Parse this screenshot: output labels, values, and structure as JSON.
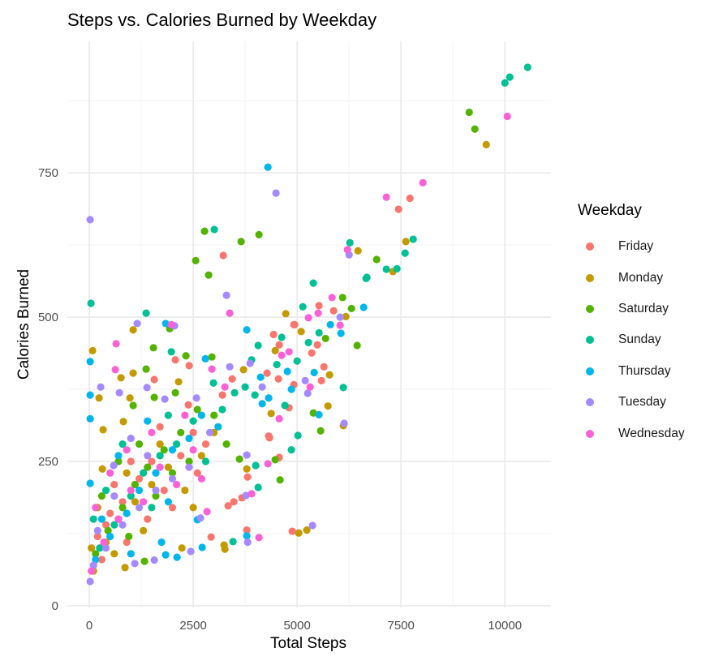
{
  "chart_data": {
    "type": "scatter",
    "title": "Steps vs. Calories Burned by Weekday",
    "xlabel": "Total Steps",
    "ylabel": "Calories Burned",
    "xlim": [
      -529,
      11109
    ],
    "ylim": [
      -3,
      978
    ],
    "x_ticks": [
      0,
      2500,
      5000,
      7500,
      10000
    ],
    "x_tick_labels": [
      "0",
      "2500",
      "5000",
      "7500",
      "10000"
    ],
    "x_minor": [
      1250,
      3750,
      6250,
      8750
    ],
    "y_ticks": [
      0,
      250,
      500,
      750
    ],
    "y_tick_labels": [
      "0",
      "250",
      "500",
      "750"
    ],
    "y_minor": [
      125,
      375,
      625,
      875
    ],
    "grid": true,
    "legend": {
      "title": "Weekday",
      "placement": "right"
    },
    "series": [
      {
        "name": "Friday",
        "color": "#F8766D",
        "points": [
          [
            3223,
            607
          ],
          [
            7715,
            706
          ],
          [
            7441,
            687
          ],
          [
            5527,
            520
          ],
          [
            5879,
            511
          ],
          [
            4941,
            487
          ],
          [
            4922,
            487
          ],
          [
            5488,
            452
          ],
          [
            5352,
            438
          ],
          [
            5645,
            414
          ],
          [
            5586,
            390
          ],
          [
            4434,
            470
          ],
          [
            4570,
            452
          ],
          [
            2070,
            426
          ],
          [
            1563,
            392
          ],
          [
            2383,
            348
          ],
          [
            2402,
            416
          ],
          [
            3438,
            393
          ],
          [
            4277,
            403
          ],
          [
            4551,
            393
          ],
          [
            4922,
            383
          ],
          [
            3203,
            365
          ],
          [
            4805,
            343
          ],
          [
            4316,
            294
          ],
          [
            4336,
            291
          ],
          [
            2930,
            119
          ],
          [
            3789,
            131
          ],
          [
            4883,
            129
          ],
          [
            3672,
            187
          ],
          [
            3477,
            180
          ],
          [
            3340,
            173
          ],
          [
            3809,
            223
          ],
          [
            4570,
            257
          ],
          [
            200,
            120
          ],
          [
            500,
            160
          ],
          [
            800,
            180
          ],
          [
            1200,
            220
          ],
          [
            1500,
            250
          ],
          [
            1800,
            200
          ],
          [
            2200,
            260
          ],
          [
            2500,
            300
          ],
          [
            900,
            110
          ],
          [
            1400,
            150
          ],
          [
            2800,
            280
          ],
          [
            300,
            80
          ],
          [
            1000,
            250
          ],
          [
            1700,
            310
          ],
          [
            600,
            210
          ],
          [
            2000,
            170
          ],
          [
            2600,
            230
          ],
          [
            400,
            140
          ]
        ]
      },
      {
        "name": "Monday",
        "color": "#C49A00",
        "points": [
          [
            9551,
            799
          ],
          [
            7617,
            631
          ],
          [
            6465,
            615
          ],
          [
            7305,
            579
          ],
          [
            6172,
            501
          ],
          [
            5098,
            475
          ],
          [
            5781,
            400
          ],
          [
            5742,
            346
          ],
          [
            6113,
            312
          ],
          [
            4727,
            506
          ],
          [
            4473,
            442
          ],
          [
            3711,
            409
          ],
          [
            4375,
            333
          ],
          [
            3242,
            105
          ],
          [
            3262,
            98
          ],
          [
            5039,
            126
          ],
          [
            5234,
            131
          ],
          [
            2227,
            100
          ],
          [
            3789,
            237
          ],
          [
            1055,
            478
          ],
          [
            78,
            442
          ],
          [
            762,
            395
          ],
          [
            234,
            360
          ],
          [
            977,
            360
          ],
          [
            820,
            319
          ],
          [
            332,
            305
          ],
          [
            1055,
            403
          ],
          [
            2148,
            388
          ],
          [
            859,
            66
          ],
          [
            313,
            237
          ],
          [
            100,
            60
          ],
          [
            400,
            110
          ],
          [
            700,
            150
          ],
          [
            1100,
            180
          ],
          [
            1500,
            210
          ],
          [
            1900,
            240
          ],
          [
            2300,
            200
          ],
          [
            2700,
            260
          ],
          [
            600,
            90
          ],
          [
            1300,
            130
          ],
          [
            200,
            170
          ],
          [
            1700,
            280
          ],
          [
            2500,
            170
          ],
          [
            900,
            230
          ],
          [
            3000,
            300
          ],
          [
            50,
            100
          ]
        ]
      },
      {
        "name": "Saturday",
        "color": "#53B400",
        "points": [
          [
            9141,
            855
          ],
          [
            9277,
            826
          ],
          [
            6914,
            600
          ],
          [
            2773,
            649
          ],
          [
            3652,
            631
          ],
          [
            4082,
            643
          ],
          [
            2559,
            598
          ],
          [
            2871,
            573
          ],
          [
            1934,
            480
          ],
          [
            6094,
            534
          ],
          [
            6309,
            515
          ],
          [
            5684,
            463
          ],
          [
            6445,
            451
          ],
          [
            5391,
            334
          ],
          [
            5566,
            303
          ],
          [
            2949,
            431
          ],
          [
            4590,
            218
          ],
          [
            3613,
            254
          ],
          [
            4473,
            253
          ],
          [
            1543,
            447
          ],
          [
            2324,
            433
          ],
          [
            1367,
            410
          ],
          [
            1563,
            361
          ],
          [
            2070,
            369
          ],
          [
            1055,
            347
          ],
          [
            1328,
            77
          ],
          [
            150,
            90
          ],
          [
            450,
            130
          ],
          [
            800,
            170
          ],
          [
            1100,
            210
          ],
          [
            1400,
            240
          ],
          [
            1800,
            270
          ],
          [
            2200,
            300
          ],
          [
            2600,
            340
          ],
          [
            700,
            250
          ],
          [
            1600,
            190
          ],
          [
            2000,
            230
          ],
          [
            3000,
            330
          ],
          [
            300,
            190
          ],
          [
            1200,
            280
          ],
          [
            2400,
            250
          ],
          [
            3300,
            280
          ],
          [
            950,
            120
          ]
        ]
      },
      {
        "name": "Sunday",
        "color": "#00C094",
        "points": [
          [
            10547,
            933
          ],
          [
            10117,
            916
          ],
          [
            10000,
            906
          ],
          [
            7793,
            635
          ],
          [
            7598,
            611
          ],
          [
            6270,
            629
          ],
          [
            7148,
            583
          ],
          [
            7402,
            584
          ],
          [
            6680,
            569
          ],
          [
            5391,
            559
          ],
          [
            6660,
            567
          ],
          [
            3008,
            652
          ],
          [
            3457,
            111
          ],
          [
            39,
            524
          ],
          [
            1367,
            507
          ],
          [
            5137,
            518
          ],
          [
            5273,
            456
          ],
          [
            5527,
            473
          ],
          [
            5000,
            424
          ],
          [
            6113,
            378
          ],
          [
            5020,
            295
          ],
          [
            4063,
            451
          ],
          [
            4629,
            465
          ],
          [
            4512,
            418
          ],
          [
            3906,
            426
          ],
          [
            2988,
            386
          ],
          [
            3750,
            379
          ],
          [
            3984,
            365
          ],
          [
            3496,
            369
          ],
          [
            4707,
            347
          ],
          [
            4863,
            270
          ],
          [
            4004,
            243
          ],
          [
            4063,
            205
          ],
          [
            1973,
            440
          ],
          [
            250,
            100
          ],
          [
            600,
            140
          ],
          [
            1000,
            190
          ],
          [
            1300,
            230
          ],
          [
            1700,
            260
          ],
          [
            2100,
            280
          ],
          [
            2500,
            320
          ],
          [
            800,
            280
          ],
          [
            1500,
            170
          ],
          [
            1900,
            330
          ],
          [
            2800,
            250
          ],
          [
            400,
            200
          ],
          [
            3200,
            340
          ],
          [
            100,
            150
          ]
        ]
      },
      {
        "name": "Thursday",
        "color": "#00B6EB",
        "points": [
          [
            4297,
            760
          ],
          [
            6602,
            517
          ],
          [
            5801,
            487
          ],
          [
            6055,
            472
          ],
          [
            5410,
            404
          ],
          [
            5527,
            331
          ],
          [
            1836,
            489
          ],
          [
            3789,
            478
          ],
          [
            3789,
            121
          ],
          [
            2715,
            101
          ],
          [
            1836,
            88
          ],
          [
            2109,
            84
          ],
          [
            1738,
            110
          ],
          [
            20,
            423
          ],
          [
            2793,
            428
          ],
          [
            4121,
            396
          ],
          [
            4766,
            406
          ],
          [
            4863,
            375
          ],
          [
            4316,
            360
          ],
          [
            4160,
            350
          ],
          [
            20,
            365
          ],
          [
            20,
            324
          ],
          [
            20,
            212
          ],
          [
            2598,
            149
          ],
          [
            150,
            80
          ],
          [
            500,
            120
          ],
          [
            900,
            160
          ],
          [
            1200,
            200
          ],
          [
            1600,
            230
          ],
          [
            2000,
            270
          ],
          [
            2400,
            290
          ],
          [
            700,
            260
          ],
          [
            1400,
            320
          ],
          [
            2700,
            330
          ],
          [
            300,
            150
          ],
          [
            1900,
            180
          ],
          [
            3100,
            310
          ],
          [
            1000,
            90
          ]
        ]
      },
      {
        "name": "Tuesday",
        "color": "#A58AFF",
        "points": [
          [
            4492,
            715
          ],
          [
            20,
            669
          ],
          [
            3301,
            538
          ],
          [
            6250,
            608
          ],
          [
            6035,
            500
          ],
          [
            5195,
            390
          ],
          [
            5254,
            368
          ],
          [
            6133,
            316
          ],
          [
            1152,
            489
          ],
          [
            2051,
            485
          ],
          [
            3809,
            110
          ],
          [
            5371,
            139
          ],
          [
            2441,
            94
          ],
          [
            1563,
            79
          ],
          [
            3770,
            191
          ],
          [
            2676,
            152
          ],
          [
            3789,
            261
          ],
          [
            3379,
            414
          ],
          [
            3867,
            420
          ],
          [
            4160,
            379
          ],
          [
            273,
            379
          ],
          [
            723,
            369
          ],
          [
            1387,
            378
          ],
          [
            1816,
            358
          ],
          [
            2578,
            360
          ],
          [
            20,
            42
          ],
          [
            1094,
            73
          ],
          [
            586,
            243
          ],
          [
            100,
            70
          ],
          [
            400,
            100
          ],
          [
            800,
            140
          ],
          [
            1200,
            170
          ],
          [
            1600,
            200
          ],
          [
            2000,
            220
          ],
          [
            2400,
            240
          ],
          [
            600,
            190
          ],
          [
            1400,
            260
          ],
          [
            2900,
            300
          ],
          [
            200,
            130
          ],
          [
            1000,
            290
          ]
        ]
      },
      {
        "name": "Wednesday",
        "color": "#FB61D7",
        "points": [
          [
            10059,
            848
          ],
          [
            8027,
            733
          ],
          [
            7148,
            708
          ],
          [
            6211,
            617
          ],
          [
            3379,
            507
          ],
          [
            5273,
            499
          ],
          [
            5508,
            507
          ],
          [
            1973,
            487
          ],
          [
            5840,
            534
          ],
          [
            6035,
            486
          ],
          [
            5313,
            379
          ],
          [
            4082,
            118
          ],
          [
            3906,
            194
          ],
          [
            2832,
            163
          ],
          [
            4297,
            246
          ],
          [
            645,
            454
          ],
          [
            625,
            409
          ],
          [
            2949,
            410
          ],
          [
            4805,
            440
          ],
          [
            4629,
            434
          ],
          [
            3262,
            379
          ],
          [
            4570,
            324
          ],
          [
            50,
            60
          ],
          [
            350,
            110
          ],
          [
            700,
            150
          ],
          [
            1000,
            200
          ],
          [
            1300,
            180
          ],
          [
            1700,
            240
          ],
          [
            2100,
            210
          ],
          [
            2500,
            270
          ],
          [
            900,
            270
          ],
          [
            1500,
            300
          ],
          [
            2300,
            330
          ],
          [
            500,
            230
          ],
          [
            2700,
            220
          ],
          [
            150,
            170
          ]
        ]
      }
    ]
  }
}
